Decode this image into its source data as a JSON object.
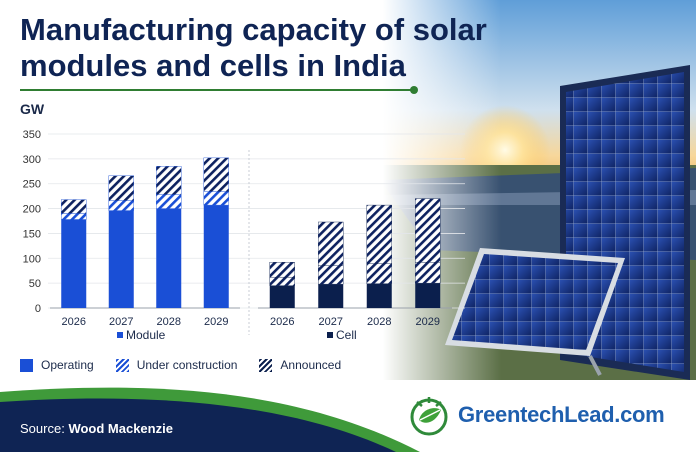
{
  "title": "Manufacturing capacity of solar modules and cells in India",
  "source": {
    "label": "Source:",
    "value": "Wood Mackenzie"
  },
  "brand": {
    "name": "GreentechLead.com"
  },
  "colors": {
    "operating": "#1a4fd6",
    "cell": "#0b1f4d",
    "title": "#0f2454",
    "accent_green": "#2f7d32",
    "brand_blue": "#1f5fae"
  },
  "legend": {
    "items": [
      "Operating",
      "Under construction",
      "Announced"
    ]
  },
  "chart_data": [
    {
      "type": "bar",
      "stacked": true,
      "panel_label": "Module",
      "ylabel": "GW",
      "ylim": [
        0,
        350
      ],
      "yticks": [
        0,
        50,
        100,
        150,
        200,
        250,
        300,
        350
      ],
      "categories": [
        "2026",
        "2027",
        "2028",
        "2029"
      ],
      "series": [
        {
          "name": "Operating",
          "values": [
            178,
            196,
            200,
            207
          ]
        },
        {
          "name": "Under construction",
          "values": [
            12,
            20,
            28,
            27
          ]
        },
        {
          "name": "Announced",
          "values": [
            28,
            50,
            57,
            68
          ]
        }
      ]
    },
    {
      "type": "bar",
      "stacked": true,
      "panel_label": "Cell",
      "ylabel": "GW",
      "ylim": [
        0,
        350
      ],
      "categories": [
        "2026",
        "2027",
        "2028",
        "2029"
      ],
      "series": [
        {
          "name": "Operating",
          "values": [
            45,
            48,
            49,
            50
          ]
        },
        {
          "name": "Under construction",
          "values": [
            17,
            37,
            40,
            42
          ]
        },
        {
          "name": "Announced",
          "values": [
            30,
            88,
            118,
            128
          ]
        }
      ]
    }
  ]
}
